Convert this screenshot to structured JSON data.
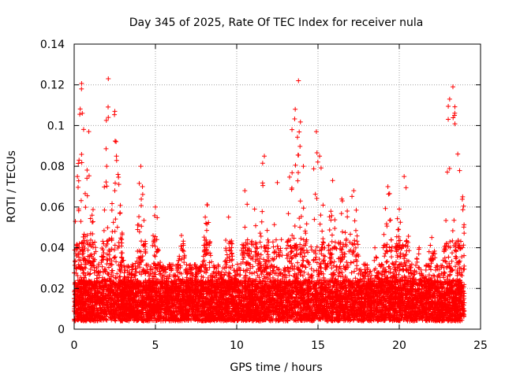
{
  "chart_data": {
    "type": "scatter",
    "title": "Day 345 of 2025, Rate Of TEC Index for receiver nula",
    "xlabel": "GPS time / hours",
    "ylabel": "ROTI / TECUs",
    "xlim": [
      0,
      25
    ],
    "ylim": [
      0,
      0.14
    ],
    "xticks": [
      "0",
      "5",
      "10",
      "15",
      "20",
      "25"
    ],
    "yticks": [
      "0",
      "0.02",
      "0.04",
      "0.06",
      "0.08",
      "0.1",
      "0.12",
      "0.14"
    ],
    "grid": true,
    "marker": "+",
    "color": "#ff0000",
    "peaks": [
      {
        "x": 0.2,
        "y": 0.075
      },
      {
        "x": 0.3,
        "y": 0.083
      },
      {
        "x": 0.45,
        "y": 0.118
      },
      {
        "x": 0.5,
        "y": 0.106
      },
      {
        "x": 0.9,
        "y": 0.097
      },
      {
        "x": 1.1,
        "y": 0.056
      },
      {
        "x": 2.0,
        "y": 0.08
      },
      {
        "x": 2.1,
        "y": 0.104
      },
      {
        "x": 2.1,
        "y": 0.123
      },
      {
        "x": 2.5,
        "y": 0.107
      },
      {
        "x": 2.6,
        "y": 0.085
      },
      {
        "x": 2.7,
        "y": 0.076
      },
      {
        "x": 2.5,
        "y": 0.068
      },
      {
        "x": 4.1,
        "y": 0.08
      },
      {
        "x": 4.2,
        "y": 0.07
      },
      {
        "x": 5.0,
        "y": 0.06
      },
      {
        "x": 6.6,
        "y": 0.046
      },
      {
        "x": 8.2,
        "y": 0.061
      },
      {
        "x": 9.5,
        "y": 0.055
      },
      {
        "x": 10.5,
        "y": 0.068
      },
      {
        "x": 11.1,
        "y": 0.059
      },
      {
        "x": 11.7,
        "y": 0.085
      },
      {
        "x": 12.5,
        "y": 0.072
      },
      {
        "x": 13.4,
        "y": 0.098
      },
      {
        "x": 13.6,
        "y": 0.108
      },
      {
        "x": 13.8,
        "y": 0.122
      },
      {
        "x": 14.1,
        "y": 0.08
      },
      {
        "x": 14.9,
        "y": 0.097
      },
      {
        "x": 15.1,
        "y": 0.085
      },
      {
        "x": 15.9,
        "y": 0.073
      },
      {
        "x": 16.5,
        "y": 0.063
      },
      {
        "x": 16.8,
        "y": 0.058
      },
      {
        "x": 17.2,
        "y": 0.068
      },
      {
        "x": 18.5,
        "y": 0.04
      },
      {
        "x": 19.3,
        "y": 0.07
      },
      {
        "x": 20.0,
        "y": 0.059
      },
      {
        "x": 20.3,
        "y": 0.075
      },
      {
        "x": 21.2,
        "y": 0.037
      },
      {
        "x": 22.0,
        "y": 0.045
      },
      {
        "x": 23.1,
        "y": 0.113
      },
      {
        "x": 23.3,
        "y": 0.119
      },
      {
        "x": 23.4,
        "y": 0.105
      },
      {
        "x": 23.6,
        "y": 0.086
      },
      {
        "x": 23.9,
        "y": 0.065
      }
    ]
  }
}
